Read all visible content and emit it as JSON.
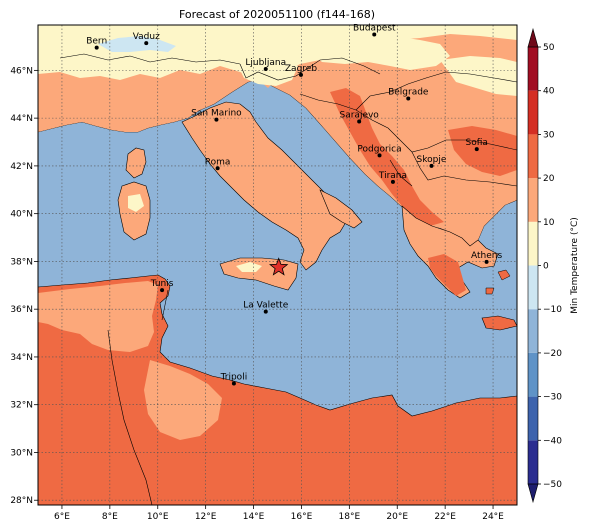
{
  "title": "Forecast of 2020051100 (f144-168)",
  "map": {
    "lon_min": 5,
    "lon_max": 25,
    "lat_min": 27.8,
    "lat_max": 47.9,
    "lon_ticks": [
      {
        "value": 6,
        "label": "6°E"
      },
      {
        "value": 8,
        "label": "8°E"
      },
      {
        "value": 10,
        "label": "10°E"
      },
      {
        "value": 12,
        "label": "12°E"
      },
      {
        "value": 14,
        "label": "14°E"
      },
      {
        "value": 16,
        "label": "16°E"
      },
      {
        "value": 18,
        "label": "18°E"
      },
      {
        "value": 20,
        "label": "20°E"
      },
      {
        "value": 22,
        "label": "22°E"
      },
      {
        "value": 24,
        "label": "24°E"
      }
    ],
    "lat_ticks": [
      {
        "value": 28,
        "label": "28°N"
      },
      {
        "value": 30,
        "label": "30°N"
      },
      {
        "value": 32,
        "label": "32°N"
      },
      {
        "value": 34,
        "label": "34°N"
      },
      {
        "value": 36,
        "label": "36°N"
      },
      {
        "value": 38,
        "label": "38°N"
      },
      {
        "value": 40,
        "label": "40°N"
      },
      {
        "value": 42,
        "label": "42°N"
      },
      {
        "value": 44,
        "label": "44°N"
      },
      {
        "value": 46,
        "label": "46°N"
      }
    ],
    "grid": true,
    "cities": [
      {
        "name": "Bern",
        "lon": 7.45,
        "lat": 46.95
      },
      {
        "name": "Vaduz",
        "lon": 9.52,
        "lat": 47.14
      },
      {
        "name": "Budapest",
        "lon": 19.04,
        "lat": 47.5
      },
      {
        "name": "Ljubljana",
        "lon": 14.51,
        "lat": 46.06
      },
      {
        "name": "Zagreb",
        "lon": 15.98,
        "lat": 45.81
      },
      {
        "name": "Belgrade",
        "lon": 20.46,
        "lat": 44.82
      },
      {
        "name": "San Marino",
        "lon": 12.45,
        "lat": 43.94
      },
      {
        "name": "Sarajevo",
        "lon": 18.41,
        "lat": 43.86
      },
      {
        "name": "Sofia",
        "lon": 23.32,
        "lat": 42.7
      },
      {
        "name": "Roma",
        "lon": 12.5,
        "lat": 41.9
      },
      {
        "name": "Podgorica",
        "lon": 19.26,
        "lat": 42.44
      },
      {
        "name": "Skopje",
        "lon": 21.43,
        "lat": 42.0
      },
      {
        "name": "Tirana",
        "lon": 19.82,
        "lat": 41.33
      },
      {
        "name": "Athens",
        "lon": 23.73,
        "lat": 37.98
      },
      {
        "name": "Tunis",
        "lon": 10.18,
        "lat": 36.8
      },
      {
        "name": "La Valette",
        "lon": 14.51,
        "lat": 35.9
      },
      {
        "name": "Tripoli",
        "lon": 13.18,
        "lat": 32.89
      }
    ],
    "marker": {
      "lon": 15.05,
      "lat": 37.75,
      "symbol": "star",
      "color": "#e0302a"
    }
  },
  "colorbar": {
    "label": "Min Temperature (°C)",
    "min": -50,
    "max": 50,
    "ticks": [
      -50,
      -40,
      -30,
      -20,
      -10,
      0,
      10,
      20,
      30,
      40,
      50
    ],
    "bands": [
      {
        "from": -50,
        "to": -40,
        "color": "#2b2d90"
      },
      {
        "from": -40,
        "to": -30,
        "color": "#3d63ad"
      },
      {
        "from": -30,
        "to": -20,
        "color": "#5f93c7"
      },
      {
        "from": -20,
        "to": -10,
        "color": "#8fb4d8"
      },
      {
        "from": -10,
        "to": 0,
        "color": "#cde6f2"
      },
      {
        "from": 0,
        "to": 10,
        "color": "#fdf6c8"
      },
      {
        "from": 10,
        "to": 20,
        "color": "#fca87a"
      },
      {
        "from": 20,
        "to": 30,
        "color": "#ef6a43"
      },
      {
        "from": 30,
        "to": 40,
        "color": "#d42e24"
      },
      {
        "from": 40,
        "to": 50,
        "color": "#a10d22"
      }
    ],
    "extend_under_color": "#1e1e6e",
    "extend_over_color": "#6f0a1a"
  },
  "colors": {
    "sea": "#8fb4d8",
    "band_0_10": "#fdf6c8",
    "band_10_20": "#fca87a",
    "band_20_30": "#ef6a43",
    "band_m10_0": "#cde6f2"
  }
}
